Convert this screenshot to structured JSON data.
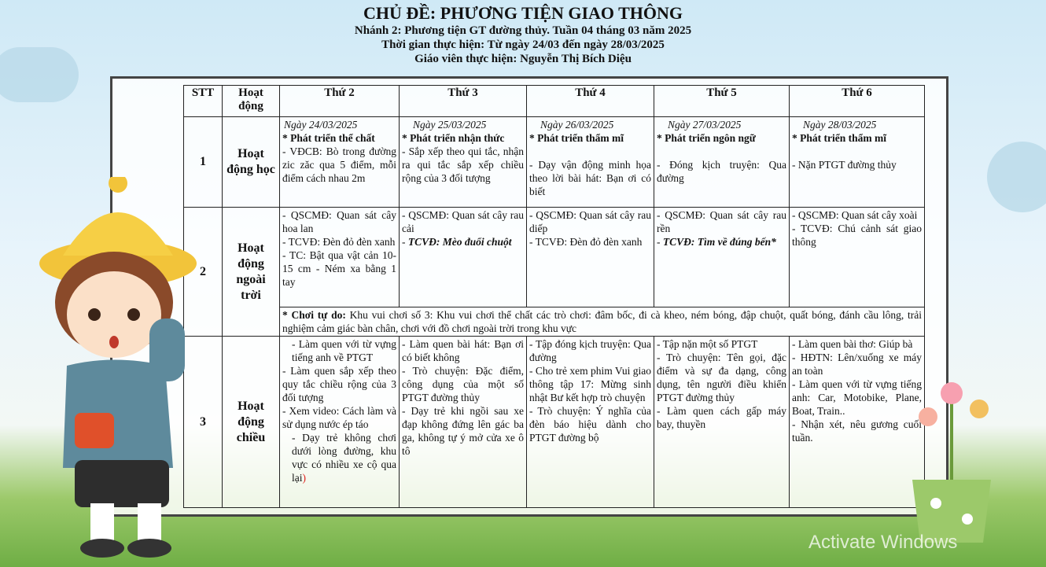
{
  "header": {
    "title": "CHỦ ĐỀ: PHƯƠNG TIỆN GIAO THÔNG",
    "line1": "Nhánh 2: Phương tiện GT đường thủy. Tuần 04 tháng 03 năm 2025",
    "line2": "Thời gian thực hiện: Từ ngày 24/03 đến ngày 28/03/2025",
    "line3": "Giáo viên thực hiện: Nguyễn Thị Bích Diệu"
  },
  "table": {
    "headers": [
      "STT",
      "Hoạt động",
      "Thứ 2",
      "Thứ 3",
      "Thứ 4",
      "Thứ 5",
      "Thứ 6"
    ],
    "dates": [
      "Ngày 24/03/2025",
      "Ngày 25/03/2025",
      "Ngày 26/03/2025",
      "Ngày 27/03/2025",
      "Ngày 28/03/2025"
    ],
    "row1": {
      "stt": "1",
      "activity": "Hoạt động học",
      "areas": [
        "* Phát triển thể chất",
        "* Phát triển nhận thức",
        "* Phát triển thẩm mĩ",
        "* Phát triển ngôn ngữ",
        "* Phát triển thẩm mĩ"
      ],
      "cells": [
        "- VĐCB: Bò trong đường zic zăc qua 5 điểm, mỗi điểm cách nhau 2m",
        "- Sắp xếp theo qui tắc, nhận ra qui tắc sắp xếp chiều rộng của 3 đối tượng",
        "- Dạy vận động minh họa theo lời bài hát: Bạn ơi có biết",
        "- Đóng kịch truyện: Qua đường",
        "- Nặn PTGT đường thủy"
      ]
    },
    "row2": {
      "stt": "2",
      "activity": "Hoạt động ngoài trời",
      "cells": [
        [
          "- QSCMĐ: Quan sát cây hoa lan",
          "- TCVĐ: Đèn đỏ đèn xanh",
          "- TC: Bật qua vật cản 10-15 cm - Ném xa bằng 1 tay"
        ],
        [
          "- QSCMĐ: Quan sát cây rau cải",
          "TCVĐ: Mèo đuổi chuột"
        ],
        [
          "- QSCMĐ: Quan sát cây rau diếp",
          "- TCVĐ: Đèn đỏ đèn xanh"
        ],
        [
          "- QSCMĐ: Quan sát cây rau rền",
          "TCVĐ: Tìm về đúng bến*"
        ],
        [
          "- QSCMĐ: Quan sát cây xoài",
          "- TCVĐ: Chú cảnh sát giao thông"
        ]
      ],
      "free_play_label": "* Chơi tự do:",
      "free_play": " Khu vui chơi số 3: Khu vui chơi thể chất các trò chơi: đâm bốc, đi cà kheo, ném bóng, đập chuột, quất bóng, đánh cầu lông, trải nghiệm cảm giác bàn chân, chơi với đồ chơi ngoài trời trong khu vực"
    },
    "row3": {
      "stt": "3",
      "activity": "Hoạt động chiều",
      "cells": [
        [
          "- Làm quen với từ vựng tiếng anh về PTGT",
          "- Làm quen sắp xếp theo quy tắc chiều rộng của 3 đối tượng",
          "- Xem video: Cách làm và sử dụng nước ép táo",
          "- Dạy trẻ không chơi dưới lòng đường, khu vực có nhiều xe cộ qua lại",
          ")"
        ],
        [
          "- Làm quen bài hát: Bạn ơi có biết không",
          "- Trò chuyện: Đặc điểm, công dụng của một số PTGT đường thủy",
          "- Dạy trẻ khi ngồi sau xe đạp không đứng lên gác ba ga, không tự ý mở cửa xe ô tô"
        ],
        [
          "- Tập đóng kịch truyện: Qua đường",
          "- Cho trẻ xem phim Vui giao thông tập 17: Mừng sinh nhật Bư kết hợp trò chuyện",
          "- Trò chuyện: Ý nghĩa của đèn báo hiệu dành cho PTGT đường bộ"
        ],
        [
          "- Tập nặn một số PTGT",
          "- Trò chuyện: Tên gọi, đặc điểm và sự đa dạng, công dụng, tên người điều khiển PTGT đường thủy",
          "- Làm quen cách gấp máy bay, thuyền"
        ],
        [
          "- Làm quen bài thơ: Giúp bà",
          "- HĐTN: Lên/xuống xe máy an toàn",
          "- Làm quen với từ vựng tiếng anh: Car, Motobike, Plane, Boat, Train..",
          "- Nhận xét, nêu gương cuối tuần."
        ]
      ]
    }
  },
  "watermark": "Activate Windows",
  "colors": {
    "sky": "#cfe9f6",
    "grass": "#6fae45",
    "border": "#222222",
    "accent_red": "#e0201c"
  }
}
